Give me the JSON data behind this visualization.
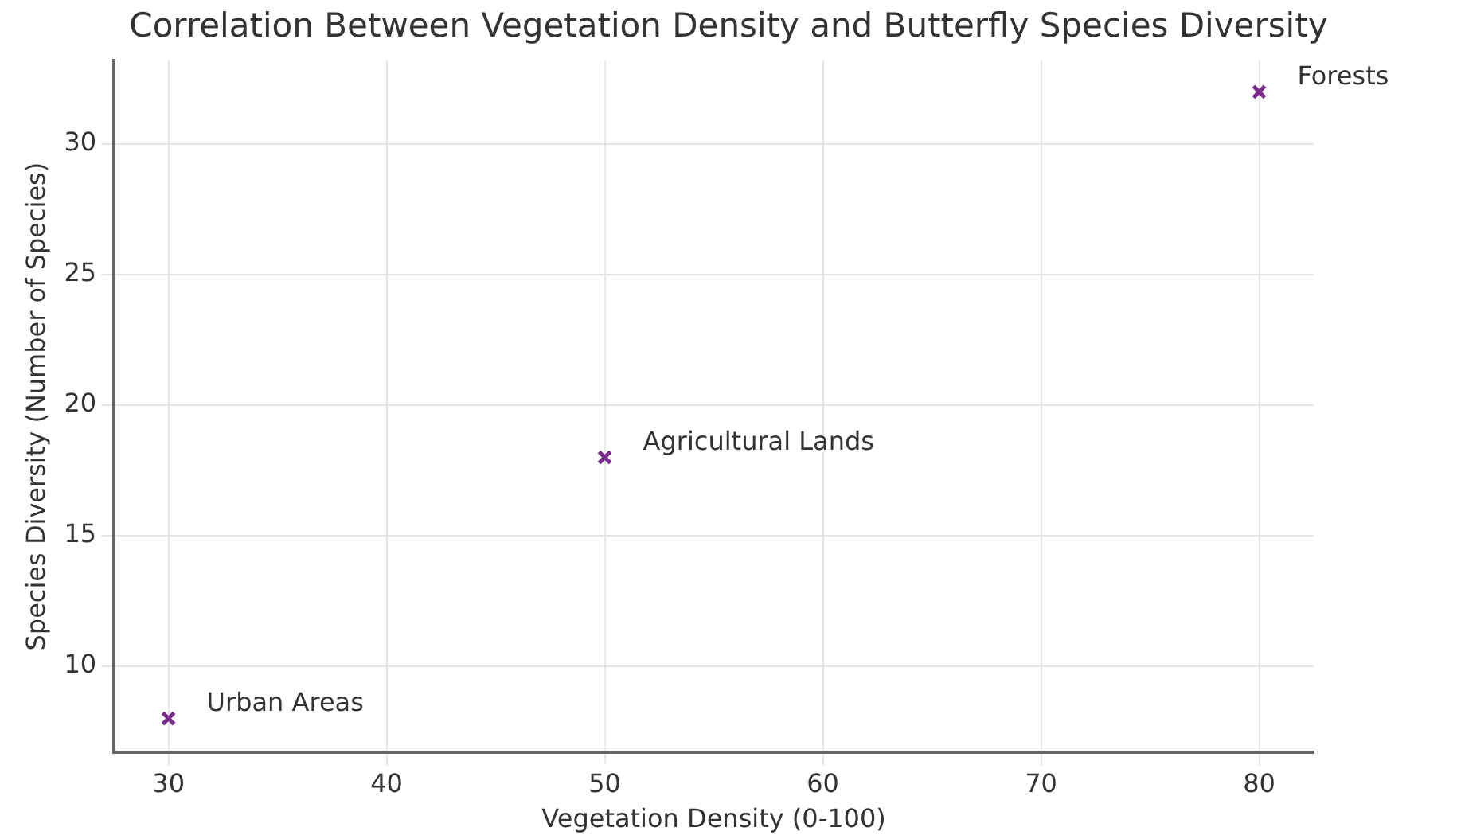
{
  "chart_data": {
    "type": "scatter",
    "title": "Correlation Between Vegetation Density and Butterfly Species Diversity",
    "xlabel": "Vegetation Density (0-100)",
    "ylabel": "Species Diversity (Number of Species)",
    "x": [
      30,
      50,
      80
    ],
    "values": [
      8,
      18,
      32
    ],
    "color": "#7b2d8e",
    "marker": "cross",
    "xlim": [
      27.5,
      82.5
    ],
    "xticks": [
      30,
      40,
      50,
      60,
      70,
      80
    ],
    "ylim": [
      6.7,
      33.2
    ],
    "yticks": [
      10,
      15,
      20,
      25,
      30
    ],
    "grid": true,
    "annotations": [
      {
        "text": "Urban Areas",
        "x": 30,
        "y": 8
      },
      {
        "text": "Agricultural Lands",
        "x": 50,
        "y": 18
      },
      {
        "text": "Forests",
        "x": 80,
        "y": 32
      }
    ]
  }
}
